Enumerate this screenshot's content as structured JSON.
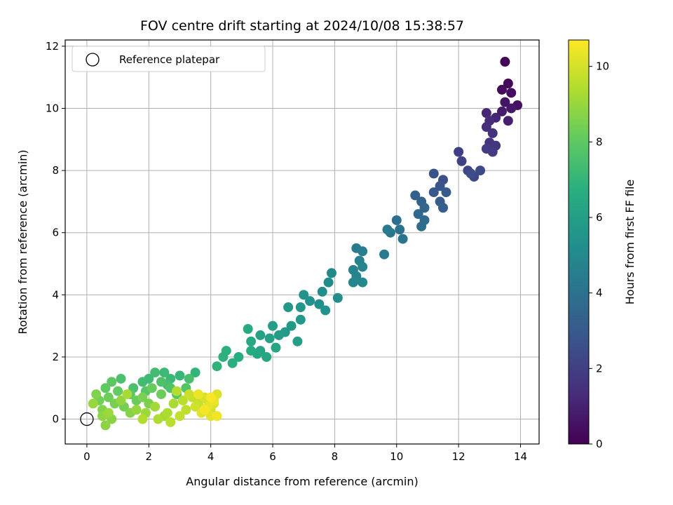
{
  "chart_data": {
    "type": "scatter",
    "title": "FOV centre drift starting at 2024/10/08 15:38:57",
    "xlabel": "Angular distance from reference (arcmin)",
    "ylabel": "Rotation from reference (arcmin)",
    "xlim": [
      -0.7,
      14.6
    ],
    "ylim": [
      -0.8,
      12.2
    ],
    "xticks": [
      0,
      2,
      4,
      6,
      8,
      10,
      12,
      14
    ],
    "yticks": [
      0,
      2,
      4,
      6,
      8,
      10,
      12
    ],
    "grid": true,
    "legend": {
      "position": "top-left",
      "entries": [
        "Reference platepar"
      ]
    },
    "reference_point": {
      "x": 0,
      "y": 0,
      "label": "Reference platepar"
    },
    "colorbar": {
      "label": "Hours from first FF file",
      "colormap": "viridis",
      "range": [
        0,
        10.7
      ],
      "ticks": [
        0,
        2,
        4,
        6,
        8,
        10
      ]
    },
    "series": [
      {
        "points": [
          [
            13.5,
            11.5,
            0.1
          ],
          [
            13.6,
            10.8,
            0.2
          ],
          [
            13.4,
            10.6,
            0.3
          ],
          [
            13.7,
            10.5,
            0.4
          ],
          [
            13.9,
            10.1,
            0.5
          ],
          [
            13.5,
            10.2,
            0.6
          ],
          [
            13.7,
            10.0,
            0.7
          ],
          [
            13.4,
            9.9,
            0.8
          ],
          [
            13.6,
            9.6,
            0.9
          ],
          [
            13.2,
            9.7,
            1.1
          ],
          [
            12.9,
            9.85,
            1.2
          ],
          [
            13.0,
            9.6,
            1.3
          ],
          [
            12.9,
            9.4,
            1.4
          ],
          [
            13.1,
            9.2,
            1.5
          ],
          [
            13.0,
            8.9,
            1.6
          ],
          [
            13.2,
            8.8,
            1.7
          ],
          [
            13.1,
            8.6,
            1.8
          ],
          [
            12.9,
            8.7,
            1.9
          ],
          [
            12.0,
            8.6,
            2.0
          ],
          [
            12.1,
            8.3,
            2.1
          ],
          [
            12.3,
            8.0,
            2.2
          ],
          [
            12.5,
            7.8,
            2.3
          ],
          [
            12.7,
            8.0,
            2.4
          ],
          [
            12.4,
            7.9,
            2.5
          ],
          [
            11.5,
            7.7,
            2.6
          ],
          [
            11.2,
            7.9,
            2.7
          ],
          [
            11.4,
            7.5,
            2.8
          ],
          [
            11.2,
            7.3,
            2.9
          ],
          [
            11.6,
            7.3,
            3.0
          ],
          [
            11.4,
            7.0,
            3.1
          ],
          [
            11.5,
            6.8,
            3.2
          ],
          [
            10.6,
            7.2,
            3.3
          ],
          [
            10.8,
            7.0,
            3.4
          ],
          [
            10.9,
            6.8,
            3.5
          ],
          [
            10.7,
            6.6,
            3.6
          ],
          [
            10.9,
            6.4,
            3.7
          ],
          [
            10.8,
            6.2,
            3.8
          ],
          [
            10.0,
            6.4,
            3.9
          ],
          [
            10.1,
            6.1,
            4.0
          ],
          [
            10.2,
            5.8,
            4.1
          ],
          [
            9.8,
            6.0,
            4.2
          ],
          [
            9.7,
            6.1,
            4.3
          ],
          [
            9.6,
            5.3,
            4.4
          ],
          [
            8.7,
            5.5,
            4.5
          ],
          [
            8.9,
            5.4,
            4.55
          ],
          [
            8.8,
            5.1,
            4.6
          ],
          [
            8.6,
            4.8,
            4.7
          ],
          [
            8.9,
            4.9,
            4.8
          ],
          [
            8.7,
            4.6,
            4.85
          ],
          [
            8.6,
            4.4,
            4.9
          ],
          [
            8.9,
            4.4,
            5.0
          ],
          [
            7.9,
            4.7,
            5.05
          ],
          [
            7.8,
            4.4,
            5.1
          ],
          [
            7.6,
            4.1,
            5.2
          ],
          [
            8.1,
            3.9,
            5.25
          ],
          [
            7.5,
            3.7,
            5.3
          ],
          [
            7.7,
            3.5,
            5.4
          ],
          [
            7.2,
            3.8,
            5.45
          ],
          [
            7.0,
            4.0,
            5.5
          ],
          [
            6.9,
            3.6,
            5.6
          ],
          [
            6.5,
            3.6,
            5.65
          ],
          [
            6.9,
            3.2,
            5.7
          ],
          [
            6.6,
            3.0,
            5.75
          ],
          [
            6.4,
            2.8,
            5.8
          ],
          [
            6.2,
            2.7,
            5.9
          ],
          [
            6.8,
            2.5,
            5.95
          ],
          [
            6.0,
            3.0,
            6.0
          ],
          [
            5.9,
            2.6,
            6.05
          ],
          [
            5.6,
            2.7,
            6.1
          ],
          [
            5.6,
            2.2,
            6.2
          ],
          [
            6.1,
            2.3,
            6.25
          ],
          [
            5.8,
            2.0,
            6.3
          ],
          [
            5.5,
            2.1,
            6.35
          ],
          [
            5.3,
            2.5,
            6.4
          ],
          [
            5.2,
            2.9,
            6.5
          ],
          [
            5.3,
            2.2,
            6.55
          ],
          [
            4.9,
            2.0,
            6.6
          ],
          [
            4.7,
            1.8,
            6.7
          ],
          [
            4.5,
            2.2,
            6.75
          ],
          [
            4.4,
            2.0,
            6.8
          ],
          [
            4.2,
            1.7,
            6.9
          ],
          [
            3.5,
            1.5,
            7.0
          ],
          [
            3.0,
            1.4,
            7.1
          ],
          [
            2.7,
            1.3,
            7.15
          ],
          [
            2.5,
            1.5,
            7.2
          ],
          [
            2.0,
            1.3,
            7.25
          ],
          [
            1.8,
            1.2,
            7.3
          ],
          [
            2.2,
            1.5,
            7.35
          ],
          [
            2.6,
            1.1,
            7.4
          ],
          [
            3.3,
            1.3,
            7.5
          ],
          [
            1.5,
            1.0,
            7.55
          ],
          [
            1.1,
            1.3,
            7.6
          ],
          [
            2.4,
            1.2,
            7.65
          ],
          [
            2.7,
            1.0,
            7.7
          ],
          [
            3.2,
            1.0,
            7.75
          ],
          [
            2.9,
            0.8,
            7.8
          ],
          [
            1.9,
            0.9,
            7.85
          ],
          [
            1.4,
            0.8,
            7.9
          ],
          [
            0.8,
            1.2,
            8.0
          ],
          [
            0.6,
            1.0,
            8.05
          ],
          [
            1.0,
            0.9,
            8.1
          ],
          [
            2.1,
            1.0,
            8.15
          ],
          [
            1.6,
            0.6,
            8.2
          ],
          [
            2.4,
            0.8,
            8.25
          ],
          [
            0.7,
            0.7,
            8.3
          ],
          [
            0.4,
            0.6,
            8.35
          ],
          [
            1.2,
            0.4,
            8.4
          ],
          [
            0.9,
            0.5,
            8.45
          ],
          [
            1.8,
            0.7,
            8.5
          ],
          [
            2.0,
            0.5,
            8.55
          ],
          [
            0.3,
            0.8,
            8.6
          ],
          [
            0.5,
            0.3,
            8.65
          ],
          [
            1.4,
            0.2,
            8.7
          ],
          [
            0.8,
            0.0,
            8.75
          ],
          [
            0.6,
            -0.2,
            8.8
          ],
          [
            0.5,
            0.1,
            8.85
          ],
          [
            1.1,
            0.6,
            8.9
          ],
          [
            1.6,
            0.3,
            8.95
          ],
          [
            0.2,
            0.5,
            9.0
          ],
          [
            0.7,
            0.2,
            9.05
          ],
          [
            1.9,
            0.2,
            9.1
          ],
          [
            2.2,
            0.4,
            9.15
          ],
          [
            2.5,
            0.1,
            9.2
          ],
          [
            1.3,
            0.8,
            9.25
          ],
          [
            2.8,
            0.5,
            9.3
          ],
          [
            2.6,
            0.2,
            9.35
          ],
          [
            2.3,
            0.0,
            9.4
          ],
          [
            1.8,
            0.0,
            9.45
          ],
          [
            2.9,
            0.9,
            9.5
          ],
          [
            3.1,
            0.6,
            9.55
          ],
          [
            2.7,
            -0.1,
            9.6
          ],
          [
            3.2,
            0.3,
            9.65
          ],
          [
            3.0,
            0.1,
            9.7
          ],
          [
            3.4,
            0.7,
            9.75
          ],
          [
            3.6,
            0.5,
            9.8
          ],
          [
            3.3,
            0.8,
            9.85
          ],
          [
            3.9,
            0.6,
            9.9
          ],
          [
            3.5,
            0.4,
            9.95
          ],
          [
            4.0,
            0.3,
            10.0
          ],
          [
            3.8,
            0.7,
            10.05
          ],
          [
            4.1,
            0.5,
            10.1
          ],
          [
            4.2,
            0.8,
            10.15
          ],
          [
            3.7,
            0.2,
            10.2
          ],
          [
            4.0,
            0.1,
            10.25
          ],
          [
            3.9,
            0.4,
            10.3
          ],
          [
            4.1,
            0.6,
            10.35
          ],
          [
            3.6,
            0.8,
            10.4
          ],
          [
            4.2,
            0.1,
            10.5
          ],
          [
            3.8,
            0.3,
            10.55
          ],
          [
            4.0,
            0.7,
            10.6
          ]
        ]
      }
    ]
  }
}
